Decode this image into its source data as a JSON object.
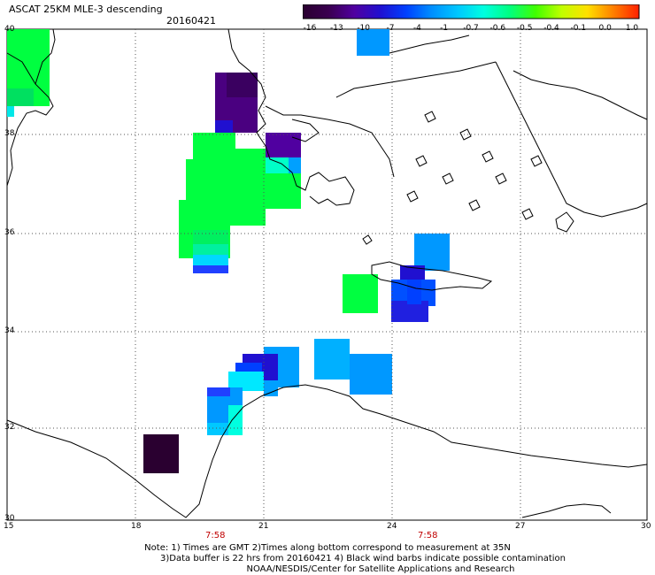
{
  "header": {
    "title": "ASCAT 25KM MLE-3 descending",
    "date": "20160421"
  },
  "legend": {
    "labels": [
      "-16",
      "-13",
      "-10",
      "-7",
      "-4",
      "-1",
      "-0.7",
      "-0.6",
      "-0.5",
      "-0.4",
      "-0.1",
      "0.0",
      "1.0"
    ],
    "colors": [
      "#2a0030",
      "#3a0050",
      "#5000a0",
      "#2010d0",
      "#0040ff",
      "#0090ff",
      "#00c8ff",
      "#00ffe0",
      "#00ff80",
      "#40ff00",
      "#c0ff00",
      "#ffe000",
      "#ff8000",
      "#ff2000"
    ]
  },
  "axes": {
    "lat_labels": [
      "40",
      "38",
      "36",
      "34",
      "32",
      "30"
    ],
    "lon_labels": [
      "15",
      "18",
      "21",
      "24",
      "27",
      "30"
    ]
  },
  "times": [
    "7:58",
    "7:58"
  ],
  "notes": {
    "line1": "Note: 1) Times are GMT 2)Times along bottom correspond to measurement at 35N",
    "line2": "3)Data buffer is 22 hrs from 20160421 4) Black wind barbs indicate possible contamination",
    "line3": "NOAA/NESDIS/Center for Satellite Applications and Research"
  }
}
